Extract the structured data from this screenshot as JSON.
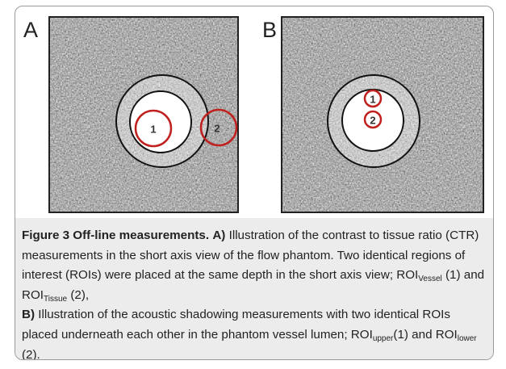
{
  "figure": {
    "panels": [
      {
        "label": "A",
        "rois": [
          "1",
          "2"
        ]
      },
      {
        "label": "B",
        "rois": [
          "1",
          "2"
        ]
      }
    ],
    "caption": {
      "title": "Figure 3 Off-line measurements.",
      "a_label": "A)",
      "a_text_1": "Illustration of the contrast to tissue ratio (CTR) measurements in the short axis view of the flow phantom. Two identical regions of interest (ROIs) were placed at the same depth in the short axis view; ROI",
      "a_sub_1": "Vessel",
      "a_text_2": " (1) and ROI",
      "a_sub_2": "Tissue",
      "a_text_3": " (2),",
      "b_label": "B)",
      "b_text_1": "Illustration of the acoustic shadowing measurements with two identical ROIs placed underneath each other in the phantom vessel lumen; ROI",
      "b_sub_1": "upper",
      "b_text_2": "(1) and ROI",
      "b_sub_2": "lower",
      "b_text_3": " (2)."
    }
  }
}
